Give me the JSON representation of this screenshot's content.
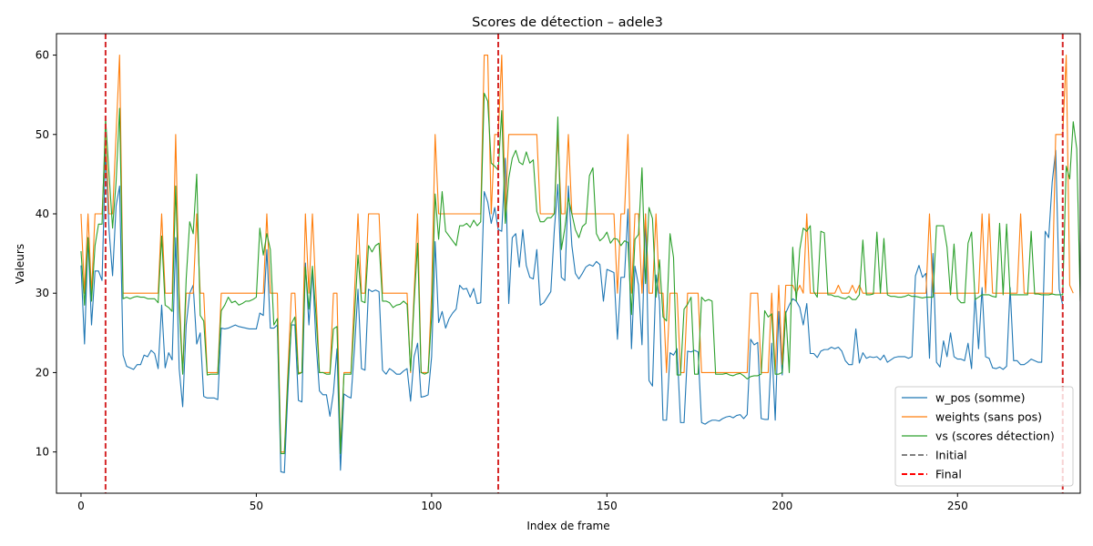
{
  "chart_data": {
    "type": "line",
    "title": "Scores de détection – adele3",
    "xlabel": "Index de frame",
    "ylabel": "Valeurs",
    "xlim": [
      -7,
      285
    ],
    "ylim": [
      4.8,
      62.7
    ],
    "xticks": [
      0,
      50,
      100,
      150,
      200,
      250
    ],
    "yticks": [
      10,
      20,
      30,
      40,
      50,
      60
    ],
    "grid": false,
    "legend_position": "lower-right",
    "series": [
      {
        "name": "w_pos (somme)",
        "color": "#1f77b4",
        "values": [
          33.5,
          23.6,
          37,
          26,
          32.8,
          32.8,
          31.6,
          48,
          38,
          32.2,
          41,
          43.5,
          22.2,
          20.8,
          20.6,
          20.4,
          21,
          21,
          22.2,
          22,
          22.8,
          22.4,
          20.5,
          28.5,
          20.6,
          22.5,
          21.6,
          37,
          20.5,
          15.7,
          26,
          30,
          31,
          23.6,
          25,
          17,
          16.8,
          16.8,
          16.8,
          16.6,
          25.6,
          25.5,
          25.6,
          25.8,
          26,
          25.8,
          25.7,
          25.6,
          25.5,
          25.5,
          25.5,
          27.5,
          27.2,
          35.5,
          25.6,
          25.6,
          26,
          7.5,
          7.4,
          17.5,
          26,
          26,
          16.5,
          16.3,
          33.8,
          26,
          33,
          24,
          17.7,
          17.2,
          17.2,
          14.5,
          17.5,
          23,
          7.7,
          17.3,
          17,
          16.8,
          23,
          30.5,
          20.5,
          20.3,
          30.5,
          30.2,
          30.4,
          30.2,
          20.3,
          19.8,
          20.5,
          20.2,
          19.8,
          19.8,
          20.2,
          20.5,
          16.4,
          22,
          23.7,
          16.9,
          17,
          17.2,
          22,
          36.5,
          26.3,
          27.7,
          25.6,
          26.8,
          27.5,
          28,
          31,
          30.5,
          30.6,
          29.5,
          30.6,
          28.7,
          28.8,
          42.8,
          41.5,
          38.8,
          40.8,
          38,
          37.8,
          47,
          28.7,
          37,
          37.5,
          33.3,
          38,
          33.5,
          32,
          31.8,
          35.5,
          28.5,
          28.8,
          29.5,
          30.2,
          38,
          43.7,
          32,
          31.6,
          43.5,
          36,
          32.5,
          31.8,
          32.5,
          33.3,
          33.6,
          33.4,
          34,
          33.6,
          29,
          33,
          32.8,
          32.6,
          24.2,
          32,
          32,
          40.6,
          23,
          33.4,
          31,
          23.5,
          40,
          19,
          18.3,
          32.3,
          29,
          14,
          14,
          22.5,
          22.2,
          23,
          13.7,
          13.7,
          22.7,
          22.6,
          22.8,
          22.6,
          13.7,
          13.5,
          13.8,
          14,
          14,
          13.9,
          14.2,
          14.4,
          14.5,
          14.3,
          14.6,
          14.7,
          14.2,
          14.7,
          24.2,
          23.5,
          23.8,
          14.2,
          14.1,
          14.1,
          23.7,
          14,
          27.7,
          19.7,
          27.5,
          28.5,
          29.3,
          29,
          28.2,
          26,
          28.7,
          22.4,
          22.4,
          21.9,
          22.7,
          22.9,
          22.9,
          23.2,
          23,
          23.2,
          22.7,
          21.5,
          21,
          21,
          25.5,
          21.2,
          22.5,
          21.8,
          22,
          21.9,
          22,
          21.6,
          22.2,
          21.3,
          21.6,
          21.9,
          22,
          22,
          22,
          21.8,
          22,
          32.2,
          33.5,
          32,
          32.5,
          21.8,
          35,
          21.3,
          20.7,
          24,
          22,
          25,
          22,
          21.7,
          21.7,
          21.5,
          23.7,
          20.5,
          29.8,
          23,
          30.7,
          22,
          21.8,
          20.6,
          20.5,
          20.7,
          20.4,
          20.8,
          30.7,
          21.5,
          21.5,
          21,
          21,
          21.3,
          21.7,
          21.5,
          21.3,
          21.3,
          37.8,
          37,
          44,
          48,
          30.5,
          28.5
        ]
      },
      {
        "name": "weights (sans pos)",
        "color": "#ff7f0e",
        "values": [
          40,
          30,
          40,
          30,
          40,
          40,
          40,
          50,
          40,
          40,
          50,
          60,
          30,
          30,
          30,
          30,
          30,
          30,
          30,
          30,
          30,
          30,
          30,
          40,
          30,
          30,
          30,
          50,
          30,
          20,
          30,
          30,
          30,
          40,
          30,
          30,
          20,
          20,
          20,
          20,
          30,
          30,
          30,
          30,
          30,
          30,
          30,
          30,
          30,
          30,
          30,
          30,
          30,
          40,
          30,
          30,
          30,
          10,
          10,
          20,
          30,
          30,
          20,
          20,
          40,
          30,
          40,
          30,
          20,
          20,
          20,
          20,
          30,
          30,
          10,
          20,
          20,
          20,
          30,
          40,
          30,
          30,
          40,
          40,
          40,
          40,
          30,
          30,
          30,
          30,
          30,
          30,
          30,
          30,
          20,
          30,
          40,
          20,
          20,
          20,
          30,
          50,
          40,
          40,
          40,
          40,
          40,
          40,
          40,
          40,
          40,
          40,
          40,
          40,
          40,
          60,
          60,
          40,
          50,
          50,
          60,
          40,
          50,
          50,
          50,
          50,
          50,
          50,
          50,
          50,
          50,
          40,
          40,
          40,
          40,
          40,
          50,
          40,
          40,
          50,
          40,
          40,
          40,
          40,
          40,
          40,
          40,
          40,
          40,
          40,
          40,
          40,
          40,
          30,
          40,
          40,
          50,
          30,
          40,
          40,
          30,
          40,
          30,
          30,
          40,
          30,
          30,
          20,
          30,
          30,
          30,
          20,
          20,
          30,
          30,
          30,
          30,
          20,
          20,
          20,
          20,
          20,
          20,
          20,
          20,
          20,
          20,
          20,
          20,
          20,
          20,
          30,
          30,
          30,
          20,
          20,
          20,
          30,
          20,
          31,
          21,
          31,
          31,
          31,
          30,
          31,
          30,
          40,
          30,
          30,
          30,
          30,
          30,
          30,
          30,
          30,
          31,
          30,
          30,
          30,
          31,
          30,
          31,
          30,
          30,
          30,
          30,
          30,
          30,
          30,
          30,
          30,
          30,
          30,
          30,
          30,
          30,
          30,
          30,
          30,
          30,
          30,
          40,
          30,
          30,
          30,
          30,
          30,
          30,
          30,
          30,
          30,
          30,
          30,
          30,
          30,
          30,
          40,
          30,
          40,
          30,
          30,
          30,
          30,
          30,
          30,
          30,
          30,
          40,
          30,
          30,
          30,
          30,
          30,
          30,
          30,
          30,
          30,
          50,
          50,
          50,
          60,
          31,
          30
        ]
      },
      {
        "name": "vs (scores détection)",
        "color": "#2ca02c",
        "values": [
          35.3,
          28.5,
          37,
          29,
          36,
          38.7,
          38.7,
          52,
          45,
          38.2,
          44,
          53.3,
          29.3,
          29.5,
          29.3,
          29.5,
          29.6,
          29.5,
          29.5,
          29.3,
          29.3,
          29.3,
          28.8,
          37.2,
          28.5,
          28.2,
          27.7,
          43.5,
          28.2,
          19.8,
          31.8,
          39,
          37.5,
          45,
          27.2,
          26.5,
          19.7,
          19.8,
          19.8,
          19.8,
          27.8,
          28.5,
          29.5,
          28.8,
          29,
          28.5,
          28.7,
          29,
          29,
          29.2,
          29.5,
          38.2,
          34.8,
          37.5,
          35.5,
          26,
          26.8,
          9.8,
          9.8,
          19,
          26.2,
          27,
          19.8,
          20,
          33.3,
          28,
          33.4,
          27.3,
          20,
          20,
          19.8,
          19.8,
          25.5,
          25.8,
          9.8,
          19.8,
          19.8,
          19.8,
          27,
          34.8,
          29,
          28.8,
          36,
          35.2,
          36,
          36.3,
          29,
          29,
          28.8,
          28.2,
          28.5,
          28.6,
          29,
          28.6,
          20.2,
          28.8,
          36.3,
          20,
          19.8,
          20,
          27,
          42.5,
          36.8,
          42.8,
          37.8,
          37.2,
          36.6,
          36,
          38.5,
          38.5,
          38.8,
          38.3,
          39.2,
          38.5,
          39,
          55.2,
          54.2,
          46.4,
          46,
          45.5,
          53,
          38.8,
          44.5,
          47,
          48,
          46.5,
          46.2,
          47.8,
          46.4,
          46.8,
          40.3,
          39,
          39,
          39.5,
          39.5,
          40,
          52.2,
          35.5,
          38.2,
          42,
          40,
          38,
          37,
          38.4,
          38.8,
          44.8,
          45.8,
          37.5,
          36.6,
          37,
          37.7,
          36.3,
          36.9,
          36.8,
          36,
          36.6,
          36.4,
          27.3,
          36.8,
          37.4,
          45.8,
          31.2,
          40.8,
          39.4,
          29.5,
          34.2,
          27,
          26.5,
          37.5,
          34.5,
          19.7,
          19.7,
          28,
          28.6,
          29.5,
          19.8,
          19.8,
          29.5,
          29,
          29.2,
          29,
          19.8,
          19.8,
          19.8,
          19.9,
          19.7,
          19.6,
          19.8,
          19.9,
          19.6,
          19.2,
          19.5,
          19.6,
          19.6,
          19.8,
          27.8,
          27,
          27.4,
          19.8,
          19.8,
          20,
          27.7,
          20,
          35.8,
          29,
          35.5,
          38.2,
          37.8,
          38.5,
          30.2,
          29.5,
          37.8,
          37.6,
          29.8,
          29.8,
          29.6,
          29.6,
          29.4,
          29.3,
          29.6,
          29.2,
          29.2,
          29.8,
          36.7,
          29.8,
          29.8,
          29.9,
          37.7,
          30,
          36.9,
          29.8,
          29.6,
          29.6,
          29.5,
          29.5,
          29.6,
          29.8,
          29.6,
          29.6,
          29.5,
          29.4,
          29.5,
          29.5,
          29.5,
          38.5,
          38.5,
          38.5,
          35.8,
          29.8,
          36.2,
          29.3,
          28.8,
          28.8,
          36.3,
          37.7,
          29.2,
          29.5,
          29.8,
          29.8,
          29.8,
          29.6,
          29.5,
          38.8,
          29.8,
          38.7,
          29.8,
          29.8,
          29.8,
          29.8,
          29.8,
          29.8,
          37.8,
          29.9,
          29.9,
          29.8,
          29.8,
          29.8,
          29.9,
          29.8,
          29.8,
          29.8,
          46,
          44.4,
          51.6,
          48.2,
          29,
          28.5
        ]
      }
    ],
    "legend_entries": [
      {
        "name": "w_pos (somme)",
        "color": "#1f77b4",
        "style": "solid"
      },
      {
        "name": "weights (sans pos)",
        "color": "#ff7f0e",
        "style": "solid"
      },
      {
        "name": "vs (scores détection)",
        "color": "#2ca02c",
        "style": "solid"
      },
      {
        "name": "Initial",
        "color": "#808080",
        "style": "dashed"
      },
      {
        "name": "Final",
        "color": "#ff0000",
        "style": "dashed"
      }
    ],
    "vlines": [
      {
        "x": 7,
        "color": "#d62728",
        "style": "dashed"
      },
      {
        "x": 119,
        "color": "#d62728",
        "style": "dashed"
      },
      {
        "x": 280,
        "color": "#d62728",
        "style": "dashed"
      }
    ]
  }
}
